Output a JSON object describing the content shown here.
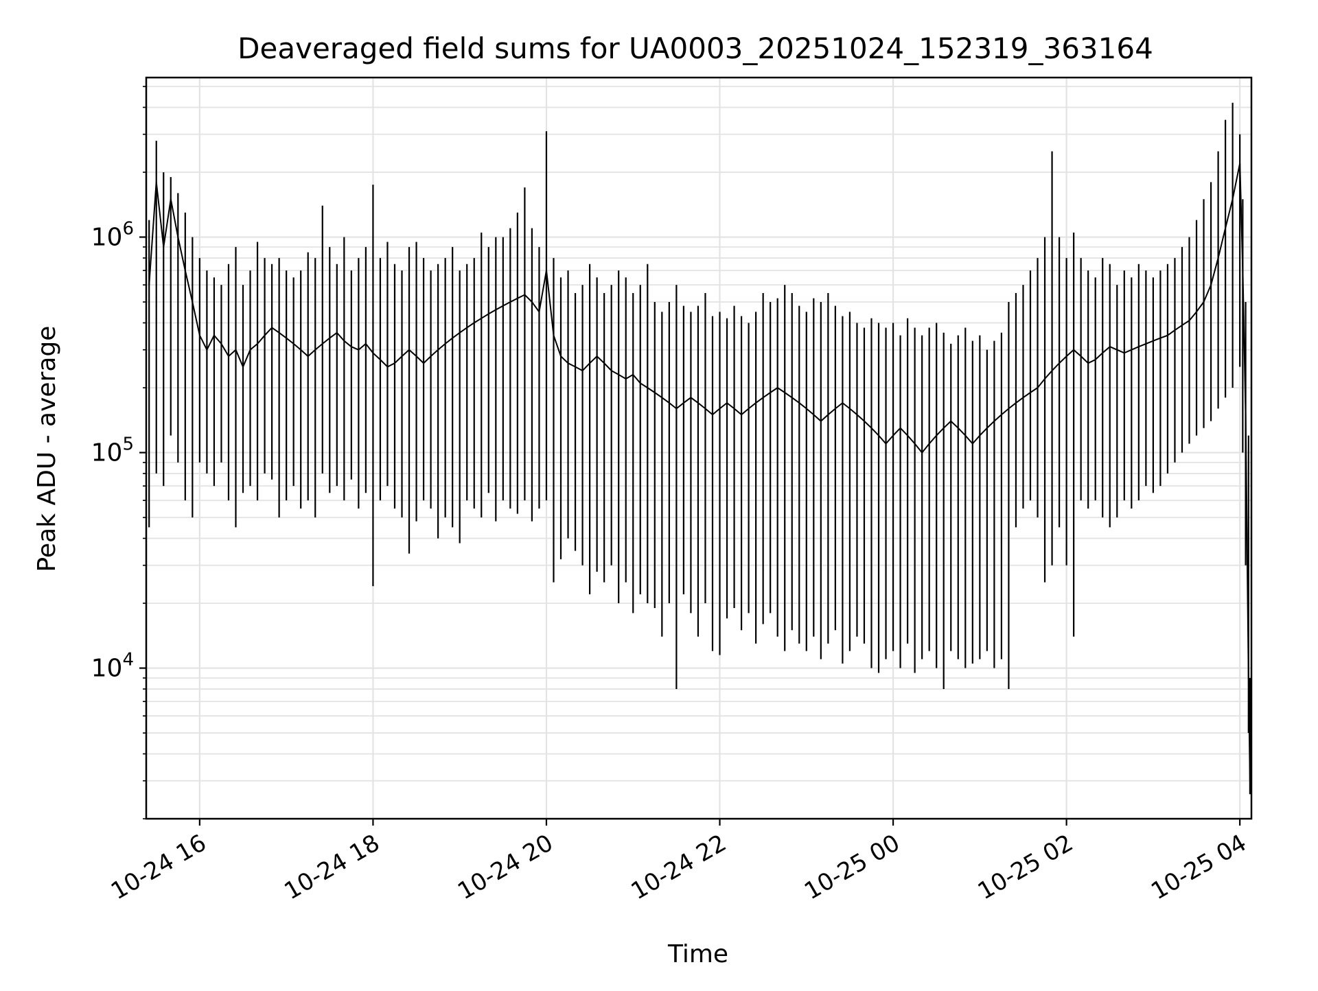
{
  "chart_data": {
    "type": "line",
    "title": "Deaveraged field sums for UA0003_20251024_152319_363164",
    "xlabel": "Time",
    "ylabel": "Peak ADU - average",
    "x_range": [
      "2025-10-24 15:23",
      "2025-10-25 04:08"
    ],
    "ylim": [
      2000,
      5500000
    ],
    "yscale": "log",
    "grid": true,
    "line_color": "#000000",
    "x_ticks": [
      {
        "label": "10-24 16",
        "time": "2025-10-24 16:00"
      },
      {
        "label": "10-24 18",
        "time": "2025-10-24 18:00"
      },
      {
        "label": "10-24 20",
        "time": "2025-10-24 20:00"
      },
      {
        "label": "10-24 22",
        "time": "2025-10-24 22:00"
      },
      {
        "label": "10-25 00",
        "time": "2025-10-25 00:00"
      },
      {
        "label": "10-25 02",
        "time": "2025-10-25 02:00"
      },
      {
        "label": "10-25 04",
        "time": "2025-10-25 04:00"
      }
    ],
    "y_ticks": [
      {
        "base": "10",
        "exp": "4",
        "value": 10000
      },
      {
        "base": "10",
        "exp": "5",
        "value": 100000
      },
      {
        "base": "10",
        "exp": "6",
        "value": 1000000
      }
    ],
    "x": [
      "2025-10-24 15:25",
      "2025-10-24 15:30",
      "2025-10-24 15:35",
      "2025-10-24 15:40",
      "2025-10-24 15:45",
      "2025-10-24 15:50",
      "2025-10-24 15:55",
      "2025-10-24 16:00",
      "2025-10-24 16:05",
      "2025-10-24 16:10",
      "2025-10-24 16:15",
      "2025-10-24 16:20",
      "2025-10-24 16:25",
      "2025-10-24 16:30",
      "2025-10-24 16:35",
      "2025-10-24 16:40",
      "2025-10-24 16:45",
      "2025-10-24 16:50",
      "2025-10-24 16:55",
      "2025-10-24 17:00",
      "2025-10-24 17:05",
      "2025-10-24 17:10",
      "2025-10-24 17:15",
      "2025-10-24 17:20",
      "2025-10-24 17:25",
      "2025-10-24 17:30",
      "2025-10-24 17:35",
      "2025-10-24 17:40",
      "2025-10-24 17:45",
      "2025-10-24 17:50",
      "2025-10-24 17:55",
      "2025-10-24 18:00",
      "2025-10-24 18:05",
      "2025-10-24 18:10",
      "2025-10-24 18:15",
      "2025-10-24 18:20",
      "2025-10-24 18:25",
      "2025-10-24 18:30",
      "2025-10-24 18:35",
      "2025-10-24 18:40",
      "2025-10-24 18:45",
      "2025-10-24 18:50",
      "2025-10-24 18:55",
      "2025-10-24 19:00",
      "2025-10-24 19:05",
      "2025-10-24 19:10",
      "2025-10-24 19:15",
      "2025-10-24 19:20",
      "2025-10-24 19:25",
      "2025-10-24 19:30",
      "2025-10-24 19:35",
      "2025-10-24 19:40",
      "2025-10-24 19:45",
      "2025-10-24 19:50",
      "2025-10-24 19:55",
      "2025-10-24 20:00",
      "2025-10-24 20:05",
      "2025-10-24 20:10",
      "2025-10-24 20:15",
      "2025-10-24 20:20",
      "2025-10-24 20:25",
      "2025-10-24 20:30",
      "2025-10-24 20:35",
      "2025-10-24 20:40",
      "2025-10-24 20:45",
      "2025-10-24 20:50",
      "2025-10-24 20:55",
      "2025-10-24 21:00",
      "2025-10-24 21:05",
      "2025-10-24 21:10",
      "2025-10-24 21:15",
      "2025-10-24 21:20",
      "2025-10-24 21:25",
      "2025-10-24 21:30",
      "2025-10-24 21:35",
      "2025-10-24 21:40",
      "2025-10-24 21:45",
      "2025-10-24 21:50",
      "2025-10-24 21:55",
      "2025-10-24 22:00",
      "2025-10-24 22:05",
      "2025-10-24 22:10",
      "2025-10-24 22:15",
      "2025-10-24 22:20",
      "2025-10-24 22:25",
      "2025-10-24 22:30",
      "2025-10-24 22:35",
      "2025-10-24 22:40",
      "2025-10-24 22:45",
      "2025-10-24 22:50",
      "2025-10-24 22:55",
      "2025-10-24 23:00",
      "2025-10-24 23:05",
      "2025-10-24 23:10",
      "2025-10-24 23:15",
      "2025-10-24 23:20",
      "2025-10-24 23:25",
      "2025-10-24 23:30",
      "2025-10-24 23:35",
      "2025-10-24 23:40",
      "2025-10-24 23:45",
      "2025-10-24 23:50",
      "2025-10-24 23:55",
      "2025-10-25 00:00",
      "2025-10-25 00:05",
      "2025-10-25 00:10",
      "2025-10-25 00:15",
      "2025-10-25 00:20",
      "2025-10-25 00:25",
      "2025-10-25 00:30",
      "2025-10-25 00:35",
      "2025-10-25 00:40",
      "2025-10-25 00:45",
      "2025-10-25 00:50",
      "2025-10-25 00:55",
      "2025-10-25 01:00",
      "2025-10-25 01:05",
      "2025-10-25 01:10",
      "2025-10-25 01:15",
      "2025-10-25 01:20",
      "2025-10-25 01:25",
      "2025-10-25 01:30",
      "2025-10-25 01:35",
      "2025-10-25 01:40",
      "2025-10-25 01:45",
      "2025-10-25 01:50",
      "2025-10-25 01:55",
      "2025-10-25 02:00",
      "2025-10-25 02:05",
      "2025-10-25 02:10",
      "2025-10-25 02:15",
      "2025-10-25 02:20",
      "2025-10-25 02:25",
      "2025-10-25 02:30",
      "2025-10-25 02:35",
      "2025-10-25 02:40",
      "2025-10-25 02:45",
      "2025-10-25 02:50",
      "2025-10-25 02:55",
      "2025-10-25 03:00",
      "2025-10-25 03:05",
      "2025-10-25 03:10",
      "2025-10-25 03:15",
      "2025-10-25 03:20",
      "2025-10-25 03:25",
      "2025-10-25 03:30",
      "2025-10-25 03:35",
      "2025-10-25 03:40",
      "2025-10-25 03:45",
      "2025-10-25 03:50",
      "2025-10-25 03:55",
      "2025-10-25 04:00",
      "2025-10-25 04:02",
      "2025-10-25 04:04",
      "2025-10-25 04:06",
      "2025-10-25 04:07"
    ],
    "series": [
      {
        "values": [
          600000,
          1800000,
          900000,
          1500000,
          1000000,
          700000,
          500000,
          350000,
          300000,
          350000,
          320000,
          280000,
          300000,
          250000,
          300000,
          320000,
          350000,
          380000,
          360000,
          340000,
          320000,
          300000,
          280000,
          300000,
          320000,
          340000,
          360000,
          330000,
          310000,
          300000,
          320000,
          290000,
          270000,
          250000,
          260000,
          280000,
          300000,
          280000,
          260000,
          280000,
          300000,
          320000,
          340000,
          360000,
          380000,
          400000,
          420000,
          440000,
          460000,
          480000,
          500000,
          520000,
          540000,
          500000,
          450000,
          700000,
          350000,
          280000,
          260000,
          250000,
          240000,
          260000,
          280000,
          260000,
          240000,
          230000,
          220000,
          230000,
          210000,
          200000,
          190000,
          180000,
          170000,
          160000,
          170000,
          180000,
          170000,
          160000,
          150000,
          160000,
          170000,
          160000,
          150000,
          160000,
          170000,
          180000,
          190000,
          200000,
          190000,
          180000,
          170000,
          160000,
          150000,
          140000,
          150000,
          160000,
          170000,
          160000,
          150000,
          140000,
          130000,
          120000,
          110000,
          120000,
          130000,
          120000,
          110000,
          100000,
          110000,
          120000,
          130000,
          140000,
          130000,
          120000,
          110000,
          120000,
          130000,
          140000,
          150000,
          160000,
          170000,
          180000,
          190000,
          200000,
          220000,
          240000,
          260000,
          280000,
          300000,
          280000,
          260000,
          270000,
          290000,
          310000,
          300000,
          290000,
          300000,
          310000,
          320000,
          330000,
          340000,
          350000,
          370000,
          390000,
          410000,
          450000,
          500000,
          600000,
          800000,
          1100000,
          1500000,
          2200000,
          700000,
          150000,
          9000,
          3000
        ],
        "min": [
          45000,
          80000,
          70000,
          120000,
          90000,
          60000,
          50000,
          90000,
          80000,
          70000,
          90000,
          60000,
          45000,
          65000,
          70000,
          60000,
          80000,
          75000,
          50000,
          60000,
          70000,
          55000,
          60000,
          50000,
          80000,
          65000,
          70000,
          60000,
          75000,
          55000,
          65000,
          24000,
          60000,
          70000,
          55000,
          50000,
          34000,
          48000,
          60000,
          55000,
          40000,
          50000,
          45000,
          38000,
          60000,
          55000,
          50000,
          65000,
          48000,
          60000,
          55000,
          52000,
          60000,
          48000,
          55000,
          60000,
          25000,
          32000,
          40000,
          35000,
          30000,
          22000,
          28000,
          25000,
          30000,
          20000,
          25000,
          18000,
          22000,
          20000,
          19000,
          14000,
          20000,
          8000,
          22000,
          18000,
          14000,
          20000,
          12000,
          11500,
          17000,
          19000,
          15000,
          18000,
          13000,
          16000,
          18000,
          14000,
          12000,
          15000,
          13000,
          12000,
          14000,
          11000,
          13000,
          15000,
          10500,
          12000,
          14000,
          13000,
          10000,
          9500,
          11000,
          12000,
          10000,
          13000,
          9500,
          11000,
          12000,
          10000,
          8000,
          12000,
          11000,
          10000,
          10500,
          11000,
          12000,
          10000,
          11000,
          8000,
          45000,
          55000,
          60000,
          50000,
          25000,
          30000,
          45000,
          30000,
          14000,
          60000,
          55000,
          60000,
          50000,
          45000,
          50000,
          60000,
          55000,
          60000,
          70000,
          65000,
          70000,
          80000,
          90000,
          100000,
          110000,
          120000,
          130000,
          140000,
          160000,
          180000,
          200000,
          250000,
          100000,
          30000,
          5000,
          2600
        ],
        "max": [
          1200000,
          2800000,
          2000000,
          1900000,
          1600000,
          1300000,
          1000000,
          800000,
          700000,
          650000,
          600000,
          750000,
          900000,
          600000,
          700000,
          950000,
          800000,
          750000,
          800000,
          700000,
          650000,
          700000,
          850000,
          800000,
          1400000,
          900000,
          750000,
          1000000,
          700000,
          800000,
          900000,
          1750000,
          800000,
          950000,
          750000,
          700000,
          900000,
          950000,
          800000,
          700000,
          750000,
          800000,
          900000,
          700000,
          750000,
          800000,
          1050000,
          900000,
          1000000,
          1000000,
          1100000,
          1300000,
          1700000,
          1100000,
          900000,
          3100000,
          800000,
          650000,
          700000,
          550000,
          600000,
          750000,
          650000,
          550000,
          600000,
          700000,
          650000,
          550000,
          600000,
          750000,
          500000,
          450000,
          500000,
          600000,
          480000,
          450000,
          480000,
          550000,
          430000,
          450000,
          420000,
          480000,
          430000,
          400000,
          450000,
          550000,
          500000,
          520000,
          600000,
          550000,
          480000,
          450000,
          520000,
          500000,
          550000,
          480000,
          430000,
          450000,
          400000,
          380000,
          420000,
          400000,
          380000,
          400000,
          350000,
          420000,
          380000,
          350000,
          380000,
          400000,
          360000,
          320000,
          350000,
          380000,
          330000,
          350000,
          300000,
          330000,
          360000,
          500000,
          550000,
          600000,
          700000,
          800000,
          1000000,
          2500000,
          1000000,
          800000,
          1050000,
          800000,
          700000,
          650000,
          800000,
          750000,
          600000,
          700000,
          650000,
          750000,
          700000,
          650000,
          700000,
          750000,
          800000,
          900000,
          1000000,
          1200000,
          1500000,
          1800000,
          2500000,
          3500000,
          4200000,
          3000000,
          1500000,
          500000,
          120000,
          9000
        ]
      }
    ]
  }
}
